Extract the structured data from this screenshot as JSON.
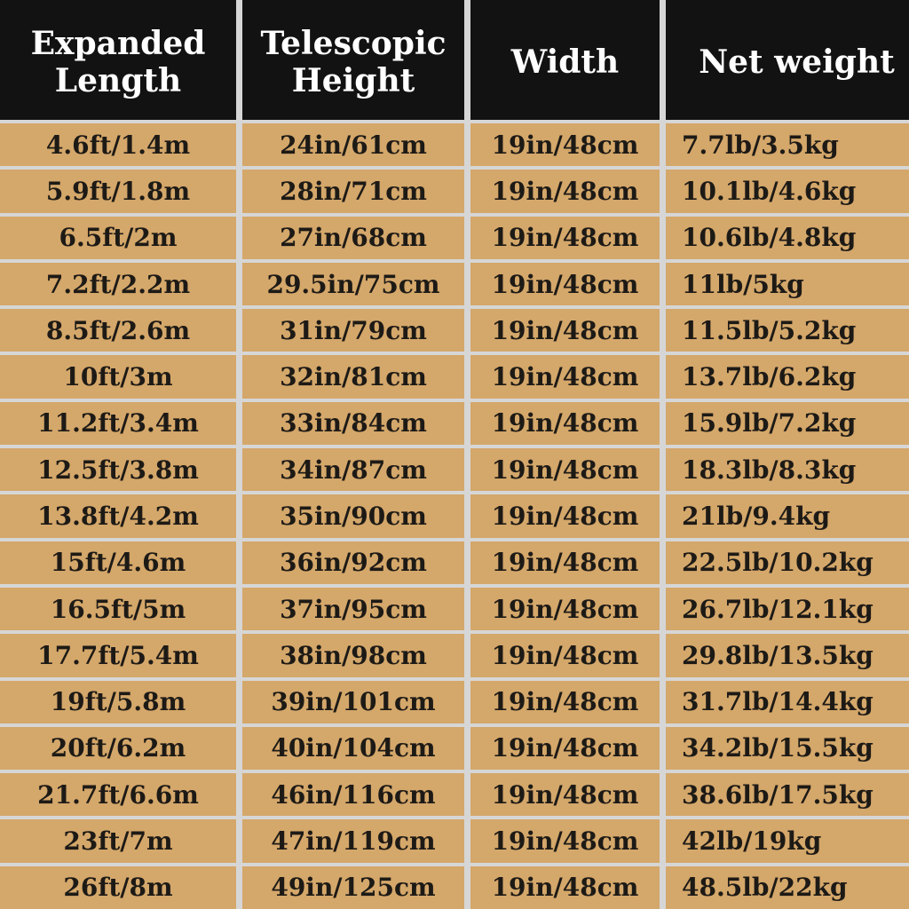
{
  "table": {
    "headers": [
      "Expanded\nLength",
      "Telescopic\nHeight",
      "Width",
      "Net weight"
    ],
    "rows": [
      [
        "4.6ft/1.4m",
        "24in/61cm",
        "19in/48cm",
        "7.7lb/3.5kg"
      ],
      [
        "5.9ft/1.8m",
        "28in/71cm",
        "19in/48cm",
        "10.1lb/4.6kg"
      ],
      [
        "6.5ft/2m",
        "27in/68cm",
        "19in/48cm",
        "10.6lb/4.8kg"
      ],
      [
        "7.2ft/2.2m",
        "29.5in/75cm",
        "19in/48cm",
        "11lb/5kg"
      ],
      [
        "8.5ft/2.6m",
        "31in/79cm",
        "19in/48cm",
        "11.5lb/5.2kg"
      ],
      [
        "10ft/3m",
        "32in/81cm",
        "19in/48cm",
        "13.7lb/6.2kg"
      ],
      [
        "11.2ft/3.4m",
        "33in/84cm",
        "19in/48cm",
        "15.9lb/7.2kg"
      ],
      [
        "12.5ft/3.8m",
        "34in/87cm",
        "19in/48cm",
        "18.3lb/8.3kg"
      ],
      [
        "13.8ft/4.2m",
        "35in/90cm",
        "19in/48cm",
        "21lb/9.4kg"
      ],
      [
        "15ft/4.6m",
        "36in/92cm",
        "19in/48cm",
        "22.5lb/10.2kg"
      ],
      [
        "16.5ft/5m",
        "37in/95cm",
        "19in/48cm",
        "26.7lb/12.1kg"
      ],
      [
        "17.7ft/5.4m",
        "38in/98cm",
        "19in/48cm",
        "29.8lb/13.5kg"
      ],
      [
        "19ft/5.8m",
        "39in/101cm",
        "19in/48cm",
        "31.7lb/14.4kg"
      ],
      [
        "20ft/6.2m",
        "40in/104cm",
        "19in/48cm",
        "34.2lb/15.5kg"
      ],
      [
        "21.7ft/6.6m",
        "46in/116cm",
        "19in/48cm",
        "38.6lb/17.5kg"
      ],
      [
        "23ft/7m",
        "47in/119cm",
        "19in/48cm",
        "42lb/19kg"
      ],
      [
        "26ft/8m",
        "49in/125cm",
        "19in/48cm",
        "48.5lb/22kg"
      ]
    ]
  },
  "colors": {
    "header_bg": "#121212",
    "header_text": "#ffffff",
    "cell_bg": "#d4a76a",
    "cell_text": "#1d1a16",
    "grid_line": "#d6d6d6"
  }
}
